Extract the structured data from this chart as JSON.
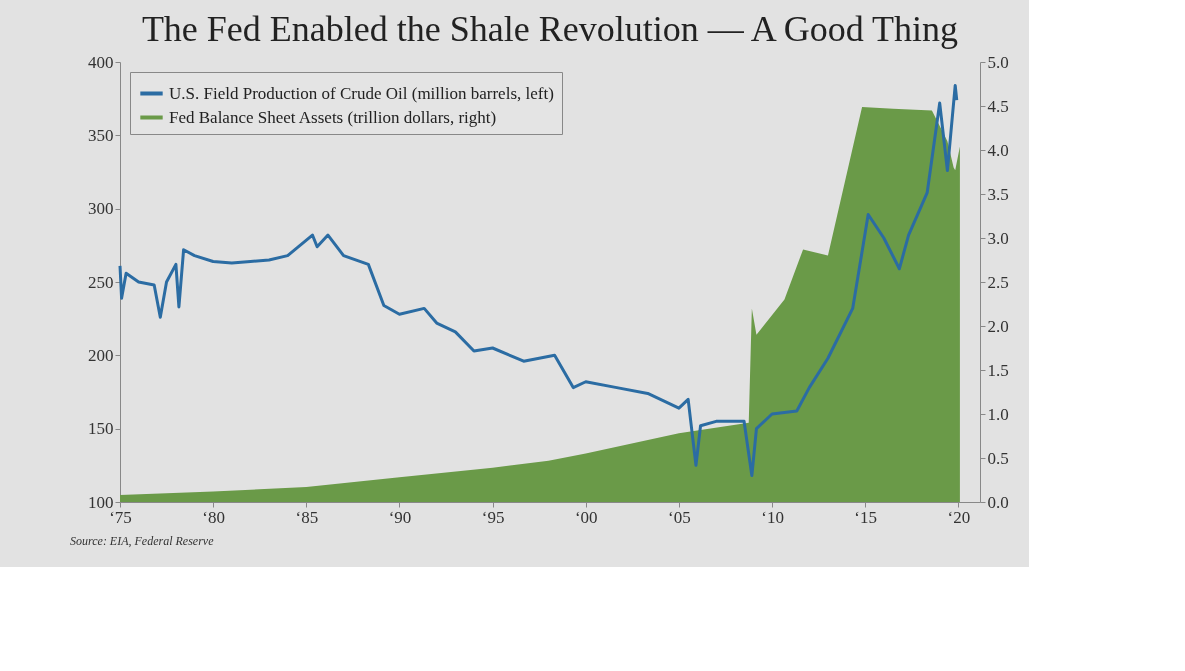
{
  "chart_data": {
    "type": "line",
    "title": "The Fed Enabled the Shale Revolution — A Good Thing",
    "annotations": [
      "Source: EIA, Federal Reserve"
    ],
    "xlim": [
      "1975-01",
      "2021-03"
    ],
    "xticks": [
      {
        "value": "1975",
        "label": "‘75"
      },
      {
        "value": "1980",
        "label": "‘80"
      },
      {
        "value": "1985",
        "label": "‘85"
      },
      {
        "value": "1990",
        "label": "‘90"
      },
      {
        "value": "1995",
        "label": "‘95"
      },
      {
        "value": "2000",
        "label": "‘00"
      },
      {
        "value": "2005",
        "label": "‘05"
      },
      {
        "value": "2010",
        "label": "‘10"
      },
      {
        "value": "2015",
        "label": "‘15"
      },
      {
        "value": "2020",
        "label": "‘20"
      }
    ],
    "ylim": [
      100,
      400
    ],
    "yticks": [
      100,
      150,
      200,
      250,
      300,
      350,
      400
    ],
    "y2lim": [
      0,
      5
    ],
    "y2ticks": [
      {
        "value": 0,
        "label": "0.0"
      },
      {
        "value": 0.5,
        "label": "0.5"
      },
      {
        "value": 1,
        "label": "1.0"
      },
      {
        "value": 1.5,
        "label": "1.5"
      },
      {
        "value": 2,
        "label": "2.0"
      },
      {
        "value": 2.5,
        "label": "2.5"
      },
      {
        "value": 3,
        "label": "3.0"
      },
      {
        "value": 3.5,
        "label": "3.5"
      },
      {
        "value": 4,
        "label": "4.0"
      },
      {
        "value": 4.5,
        "label": "4.5"
      },
      {
        "value": 5,
        "label": "5.0"
      }
    ],
    "legend": "top left",
    "series": [
      {
        "name": "U.S. Field Production of Crude Oil (million barrels, left)",
        "color": "#2b6ca3",
        "x": [
          "1975-01",
          "1975-02",
          "1975-05",
          "1976-01",
          "1976-11",
          "1977-03",
          "1977-07",
          "1978-01",
          "1978-03",
          "1978-06",
          "1979-01",
          "1980-01",
          "1981-01",
          "1982-01",
          "1983-01",
          "1984-01",
          "1985-05",
          "1985-08",
          "1986-03",
          "1987-01",
          "1988-05",
          "1989-03",
          "1990-01",
          "1991-05",
          "1992-01",
          "1993-01",
          "1994-01",
          "1995-01",
          "1996-09",
          "1998-05",
          "1999-05",
          "2000-01",
          "2001-09",
          "2003-05",
          "2005-01",
          "2005-07",
          "2005-12",
          "2006-03",
          "2007-01",
          "2008-07",
          "2008-12",
          "2009-03",
          "2010-01",
          "2011-05",
          "2012-01",
          "2013-01",
          "2014-05",
          "2015-03",
          "2016-01",
          "2016-11",
          "2017-05",
          "2018-05",
          "2019-01",
          "2019-06",
          "2019-11",
          "2019-12"
        ],
        "values": [
          261,
          239,
          256,
          250,
          248,
          226,
          250,
          262,
          233,
          272,
          268,
          264,
          263,
          264,
          265,
          268,
          282,
          274,
          282,
          268,
          262,
          234,
          228,
          232,
          222,
          216,
          203,
          205,
          196,
          200,
          178,
          182,
          178,
          174,
          164,
          170,
          125,
          152,
          155,
          155,
          118,
          150,
          160,
          162,
          178,
          198,
          232,
          296,
          280,
          259,
          282,
          311,
          372,
          326,
          384,
          374
        ]
      },
      {
        "name": "Fed Balance Sheet Assets (trillion dollars, right)",
        "type": "area",
        "axis": "y2",
        "color": "#6a9a48",
        "x": [
          "1975-01",
          "1980-01",
          "1985-01",
          "1990-01",
          "1995-01",
          "1998-01",
          "2000-01",
          "2005-01",
          "2008-10",
          "2008-12",
          "2009-03",
          "2010-09",
          "2011-09",
          "2013-01",
          "2014-11",
          "2016-07",
          "2018-08",
          "2019-06",
          "2019-10",
          "2019-11",
          "2020-02"
        ],
        "values": [
          0.08,
          0.12,
          0.17,
          0.28,
          0.39,
          0.47,
          0.55,
          0.78,
          0.9,
          2.2,
          1.9,
          2.3,
          2.87,
          2.8,
          4.49,
          4.47,
          4.45,
          4.1,
          3.8,
          3.77,
          4.04
        ]
      }
    ]
  }
}
